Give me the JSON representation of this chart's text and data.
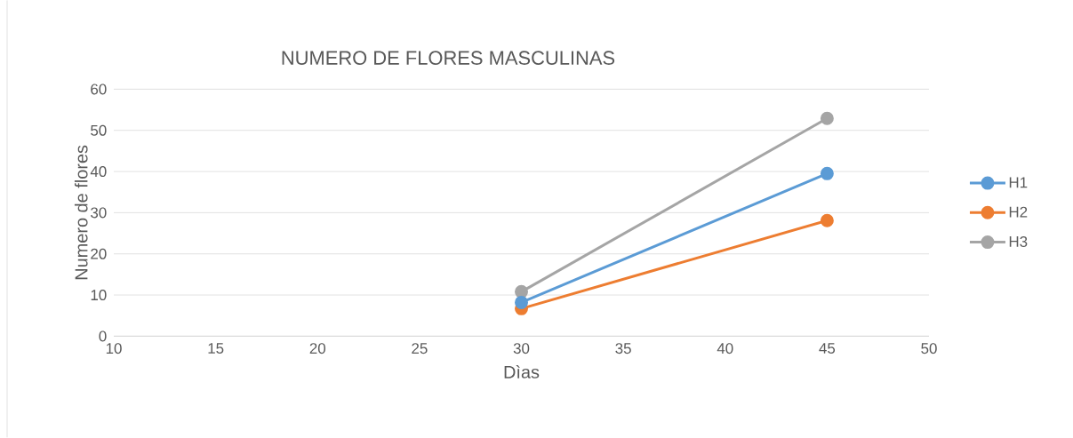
{
  "chart_data": {
    "type": "line",
    "title": "NUMERO DE FLORES MASCULINAS",
    "xlabel": "Dìas",
    "ylabel": "Numero de flores",
    "x": [
      30,
      45
    ],
    "series": [
      {
        "name": "H1",
        "color": "#5b9bd5",
        "values": [
          8.2,
          39.5
        ]
      },
      {
        "name": "H2",
        "color": "#ed7d31",
        "values": [
          6.7,
          28.1
        ]
      },
      {
        "name": "H3",
        "color": "#a5a5a5",
        "values": [
          10.8,
          52.9
        ]
      }
    ],
    "xlim": [
      10,
      50
    ],
    "xticks": [
      10,
      15,
      20,
      25,
      30,
      35,
      40,
      45,
      50
    ],
    "ylim": [
      0,
      60
    ],
    "yticks": [
      0,
      10,
      20,
      30,
      40,
      50,
      60
    ],
    "grid": "y",
    "legend": "right",
    "marker": "circle",
    "line_style": "solid"
  }
}
